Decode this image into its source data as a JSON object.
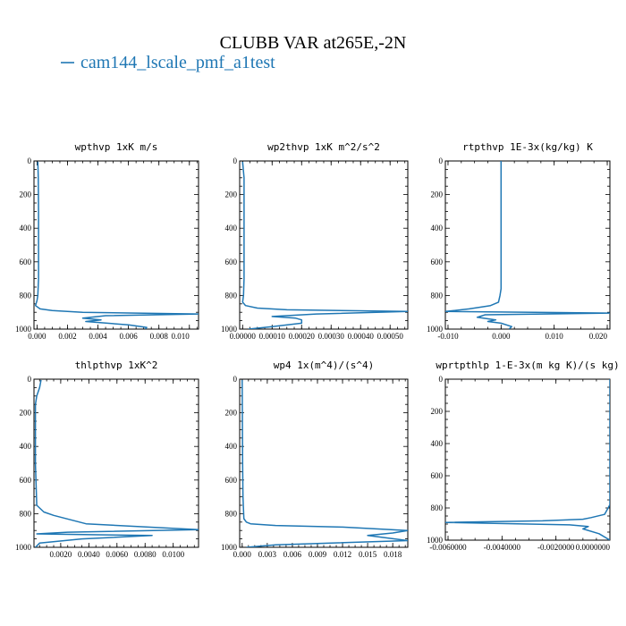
{
  "figure": {
    "title": "CLUBB VAR at265E,-2N",
    "legend": {
      "label": "cam144_lscale_pmf_a1test",
      "color": "#1f77b4"
    }
  },
  "chart_data": [
    {
      "type": "line",
      "title": "wpthvp   1xK m/s",
      "xlim": [
        -0.0002,
        0.0106
      ],
      "ylim": [
        1000,
        0
      ],
      "xticks": [
        "0.000",
        "0.002",
        "0.004",
        "0.006",
        "0.008",
        "0.010"
      ],
      "xtick_values": [
        0,
        0.002,
        0.004,
        0.006,
        0.008,
        0.01
      ],
      "yticks": [
        "0",
        "200",
        "400",
        "600",
        "800",
        "1000"
      ],
      "ytick_values": [
        0,
        200,
        400,
        600,
        800,
        1000
      ],
      "series": [
        {
          "color": "#1f77b4",
          "x": [
            5e-05,
            8e-05,
            0.0001,
            0.0001,
            0.0001,
            5e-05,
            0.0,
            -0.0001,
            0.0002,
            0.001,
            0.003,
            0.0106,
            0.0045,
            0.003,
            0.0042,
            0.0032,
            0.006,
            0.0072,
            0.0071
          ],
          "y": [
            5,
            100,
            300,
            500,
            700,
            800,
            830,
            860,
            880,
            890,
            900,
            910,
            920,
            935,
            945,
            955,
            975,
            990,
            1000
          ]
        }
      ]
    },
    {
      "type": "line",
      "title": "wp2thvp   1xK m^2/s^2",
      "xlim": [
        -1e-05,
        0.00056
      ],
      "ylim": [
        1000,
        0
      ],
      "xticks": [
        "0.00000",
        "0.00010",
        "0.00020",
        "0.00030",
        "0.00040",
        "0.00050"
      ],
      "xtick_values": [
        0,
        0.0001,
        0.0002,
        0.0003,
        0.0004,
        0.0005
      ],
      "yticks": [
        "0",
        "200",
        "400",
        "600",
        "800",
        "1000"
      ],
      "ytick_values": [
        0,
        200,
        400,
        600,
        800,
        1000
      ],
      "series": [
        {
          "color": "#1f77b4",
          "x": [
            0.0,
            5e-06,
            5e-06,
            5e-06,
            5e-06,
            3e-06,
            0.0,
            1e-05,
            5e-05,
            0.00015,
            0.00056,
            0.00025,
            0.0001,
            0.00018,
            0.0002,
            0.0002,
            0.0001,
            2e-05
          ],
          "y": [
            5,
            100,
            300,
            500,
            700,
            800,
            840,
            860,
            875,
            885,
            895,
            910,
            925,
            935,
            945,
            965,
            985,
            1000
          ]
        }
      ]
    },
    {
      "type": "line",
      "title": "rtpthvp   1E-3x(kg/kg) K",
      "xlim": [
        -0.0105,
        0.0205
      ],
      "ylim": [
        1000,
        0
      ],
      "xticks": [
        "-0.010",
        "0.000",
        "0.010",
        "0.020"
      ],
      "xtick_values": [
        -0.01,
        0.0,
        0.01,
        0.02
      ],
      "yticks": [
        "0",
        "200",
        "400",
        "600",
        "800",
        "1000"
      ],
      "ytick_values": [
        0,
        200,
        400,
        600,
        800,
        1000
      ],
      "series": [
        {
          "color": "#1f77b4",
          "x": [
            0.0,
            0.0,
            0.0,
            0.0,
            0.0,
            -0.0002,
            -0.0005,
            -0.002,
            -0.006,
            -0.0105,
            0.0205,
            -0.003,
            -0.0045,
            -0.001,
            -0.0025,
            0.0,
            0.002,
            0.0015
          ],
          "y": [
            0,
            200,
            400,
            600,
            760,
            800,
            840,
            860,
            880,
            895,
            905,
            915,
            930,
            945,
            955,
            965,
            985,
            1000
          ]
        }
      ]
    },
    {
      "type": "line",
      "title": "thlpthvp   1xK^2",
      "xlim": [
        0.0001,
        0.0118
      ],
      "ylim": [
        1000,
        0
      ],
      "xticks": [
        "0.0020",
        "0.0040",
        "0.0060",
        "0.0080",
        "0.0100"
      ],
      "xtick_values": [
        0.002,
        0.004,
        0.006,
        0.008,
        0.01
      ],
      "yticks": [
        "0",
        "200",
        "400",
        "600",
        "800",
        "1000"
      ],
      "ytick_values": [
        0,
        200,
        400,
        600,
        800,
        1000
      ],
      "series": [
        {
          "color": "#1f77b4",
          "x": [
            0.0006,
            0.0005,
            0.0003,
            0.0002,
            0.0002,
            0.0002,
            0.0003,
            0.0008,
            0.0015,
            0.0038,
            0.0118,
            0.0025,
            0.0003,
            0.0085,
            0.0035,
            0.0005,
            0.0002
          ],
          "y": [
            5,
            50,
            100,
            150,
            300,
            500,
            750,
            790,
            810,
            860,
            895,
            910,
            920,
            930,
            950,
            975,
            1000
          ]
        }
      ]
    },
    {
      "type": "line",
      "title": "wp4   1x(m^4)/(s^4)",
      "xlim": [
        -0.0003,
        0.0198
      ],
      "ylim": [
        1000,
        0
      ],
      "xticks": [
        "0.000",
        "0.003",
        "0.006",
        "0.009",
        "0.012",
        "0.015",
        "0.018"
      ],
      "xtick_values": [
        0,
        0.003,
        0.006,
        0.009,
        0.012,
        0.015,
        0.018
      ],
      "yticks": [
        "0",
        "200",
        "400",
        "600",
        "800",
        "1000"
      ],
      "ytick_values": [
        0,
        200,
        400,
        600,
        800,
        1000
      ],
      "series": [
        {
          "color": "#1f77b4",
          "x": [
            0.0,
            2e-05,
            5e-05,
            0.0001,
            0.0002,
            0.0005,
            0.001,
            0.004,
            0.012,
            0.0198,
            0.018,
            0.015,
            0.0175,
            0.0198,
            0.004,
            0.0005
          ],
          "y": [
            5,
            200,
            500,
            700,
            830,
            850,
            860,
            870,
            880,
            900,
            915,
            930,
            945,
            960,
            985,
            1000
          ]
        }
      ]
    },
    {
      "type": "line",
      "title": "wprtpthlp   1-E-3x(m kg K)/(s kg)",
      "xlim": [
        -0.0061,
        0.0
      ],
      "ylim": [
        1000,
        0
      ],
      "xticks": [
        "-0.0060000",
        "-0.0040000",
        "-0.0020000",
        "0.0000000"
      ],
      "xtick_values": [
        -0.006,
        -0.004,
        -0.002,
        0.0
      ],
      "yticks": [
        "0",
        "200",
        "400",
        "600",
        "800",
        "1000"
      ],
      "ytick_values": [
        0,
        200,
        400,
        600,
        800,
        1000
      ],
      "series": [
        {
          "color": "#1f77b4",
          "x": [
            0.0,
            0.0,
            0.0,
            0.0,
            -0.0002,
            -0.0007,
            -0.001,
            -0.0025,
            -0.0061,
            -0.0015,
            -0.0008,
            -0.001,
            -0.0004,
            0.0
          ],
          "y": [
            0,
            200,
            500,
            780,
            840,
            860,
            870,
            880,
            890,
            905,
            915,
            930,
            960,
            1000
          ]
        }
      ]
    }
  ]
}
